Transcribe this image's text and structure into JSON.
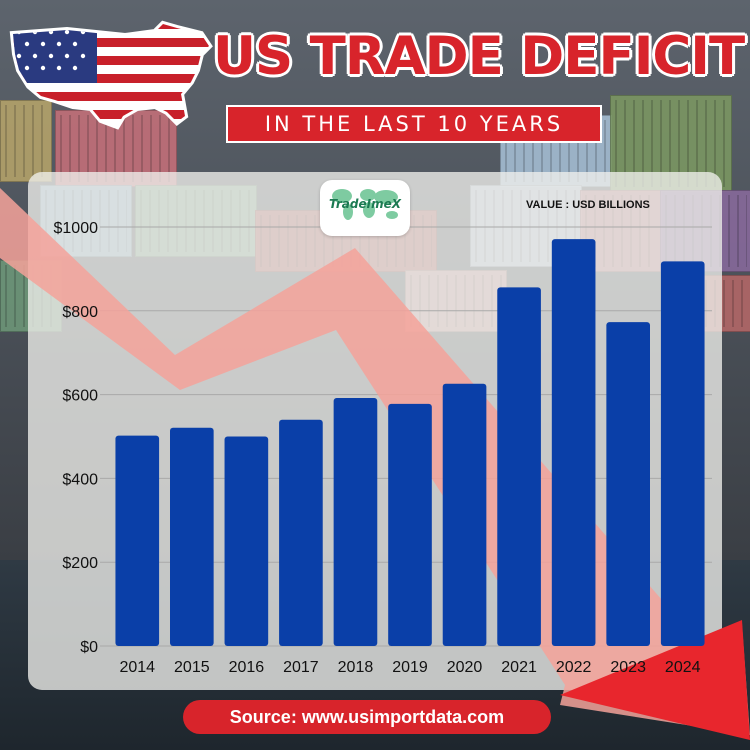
{
  "header": {
    "title": "US TRADE DEFICIT",
    "subtitle": "IN THE LAST 10 YEARS"
  },
  "logo": {
    "name": "TradeImeX"
  },
  "source": "Source: www.usimportdata.com",
  "icons": [
    "us-flag-map-icon",
    "world-map-icon",
    "trend-arrow-icon"
  ],
  "colors": {
    "bar": "#0a3fa8",
    "accent_red": "#d8242b",
    "arrow": "#f4a29a",
    "logo_green": "#1c7a52"
  },
  "chart_data": {
    "type": "bar",
    "categories": [
      "2014",
      "2015",
      "2016",
      "2017",
      "2018",
      "2019",
      "2020",
      "2021",
      "2022",
      "2023",
      "2024"
    ],
    "values": [
      502,
      521,
      500,
      540,
      592,
      578,
      626,
      856,
      971,
      773,
      918
    ],
    "y_tick_labels": [
      "$0",
      "$200",
      "$400",
      "$600",
      "$800",
      "$1000"
    ],
    "y_ticks": [
      0,
      200,
      400,
      600,
      800,
      1000
    ],
    "ylim": [
      0,
      1000
    ],
    "ylabel": "VALUE : USD BILLIONS",
    "grid": true
  }
}
